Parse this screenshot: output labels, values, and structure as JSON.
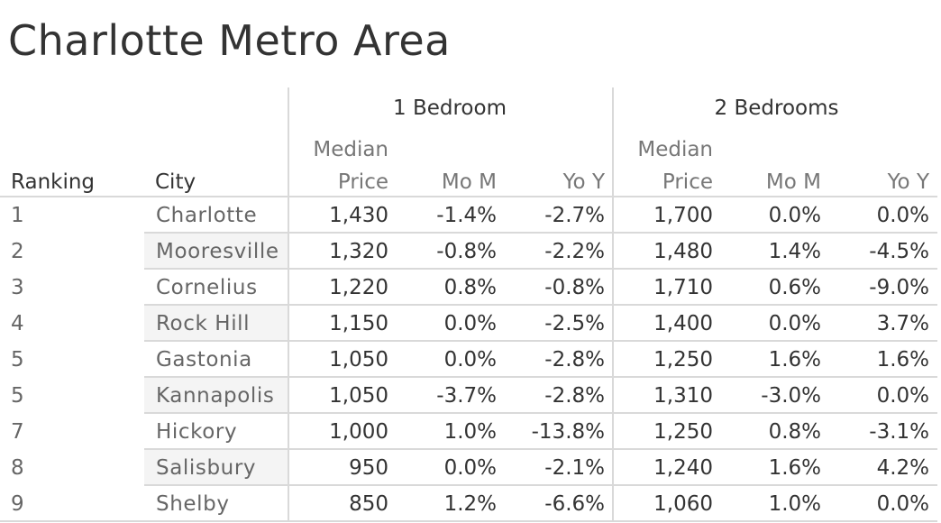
{
  "title": "Charlotte Metro Area",
  "chart_data": {
    "type": "table",
    "title": "Charlotte Metro Area",
    "group_headers": [
      "1 Bedroom",
      "2 Bedrooms"
    ],
    "row_headers": [
      "Ranking",
      "City"
    ],
    "measure_headers": [
      {
        "line1": "Median",
        "line2": "Price"
      },
      {
        "line1": "",
        "line2": "Mo M"
      },
      {
        "line1": "",
        "line2": "Yo Y"
      }
    ],
    "rows": [
      {
        "ranking": "1",
        "city": "Charlotte",
        "b1_price": "1,430",
        "b1_mom": "-1.4%",
        "b1_yoy": "-2.7%",
        "b2_price": "1,700",
        "b2_mom": "0.0%",
        "b2_yoy": "0.0%"
      },
      {
        "ranking": "2",
        "city": "Mooresville",
        "b1_price": "1,320",
        "b1_mom": "-0.8%",
        "b1_yoy": "-2.2%",
        "b2_price": "1,480",
        "b2_mom": "1.4%",
        "b2_yoy": "-4.5%"
      },
      {
        "ranking": "3",
        "city": "Cornelius",
        "b1_price": "1,220",
        "b1_mom": "0.8%",
        "b1_yoy": "-0.8%",
        "b2_price": "1,710",
        "b2_mom": "0.6%",
        "b2_yoy": "-9.0%"
      },
      {
        "ranking": "4",
        "city": "Rock Hill",
        "b1_price": "1,150",
        "b1_mom": "0.0%",
        "b1_yoy": "-2.5%",
        "b2_price": "1,400",
        "b2_mom": "0.0%",
        "b2_yoy": "3.7%"
      },
      {
        "ranking": "5",
        "city": "Gastonia",
        "b1_price": "1,050",
        "b1_mom": "0.0%",
        "b1_yoy": "-2.8%",
        "b2_price": "1,250",
        "b2_mom": "1.6%",
        "b2_yoy": "1.6%"
      },
      {
        "ranking": "5",
        "city": "Kannapolis",
        "b1_price": "1,050",
        "b1_mom": "-3.7%",
        "b1_yoy": "-2.8%",
        "b2_price": "1,310",
        "b2_mom": "-3.0%",
        "b2_yoy": "0.0%"
      },
      {
        "ranking": "7",
        "city": "Hickory",
        "b1_price": "1,000",
        "b1_mom": "1.0%",
        "b1_yoy": "-13.8%",
        "b2_price": "1,250",
        "b2_mom": "0.8%",
        "b2_yoy": "-3.1%"
      },
      {
        "ranking": "8",
        "city": "Salisbury",
        "b1_price": "950",
        "b1_mom": "0.0%",
        "b1_yoy": "-2.1%",
        "b2_price": "1,240",
        "b2_mom": "1.6%",
        "b2_yoy": "4.2%"
      },
      {
        "ranking": "9",
        "city": "Shelby",
        "b1_price": "850",
        "b1_mom": "1.2%",
        "b1_yoy": "-6.6%",
        "b2_price": "1,060",
        "b2_mom": "1.0%",
        "b2_yoy": "0.0%"
      }
    ]
  },
  "colors": {
    "text": "#333333",
    "muted_text": "#666666",
    "grid": "#d9d9d9",
    "band": "#f4f4f4"
  }
}
